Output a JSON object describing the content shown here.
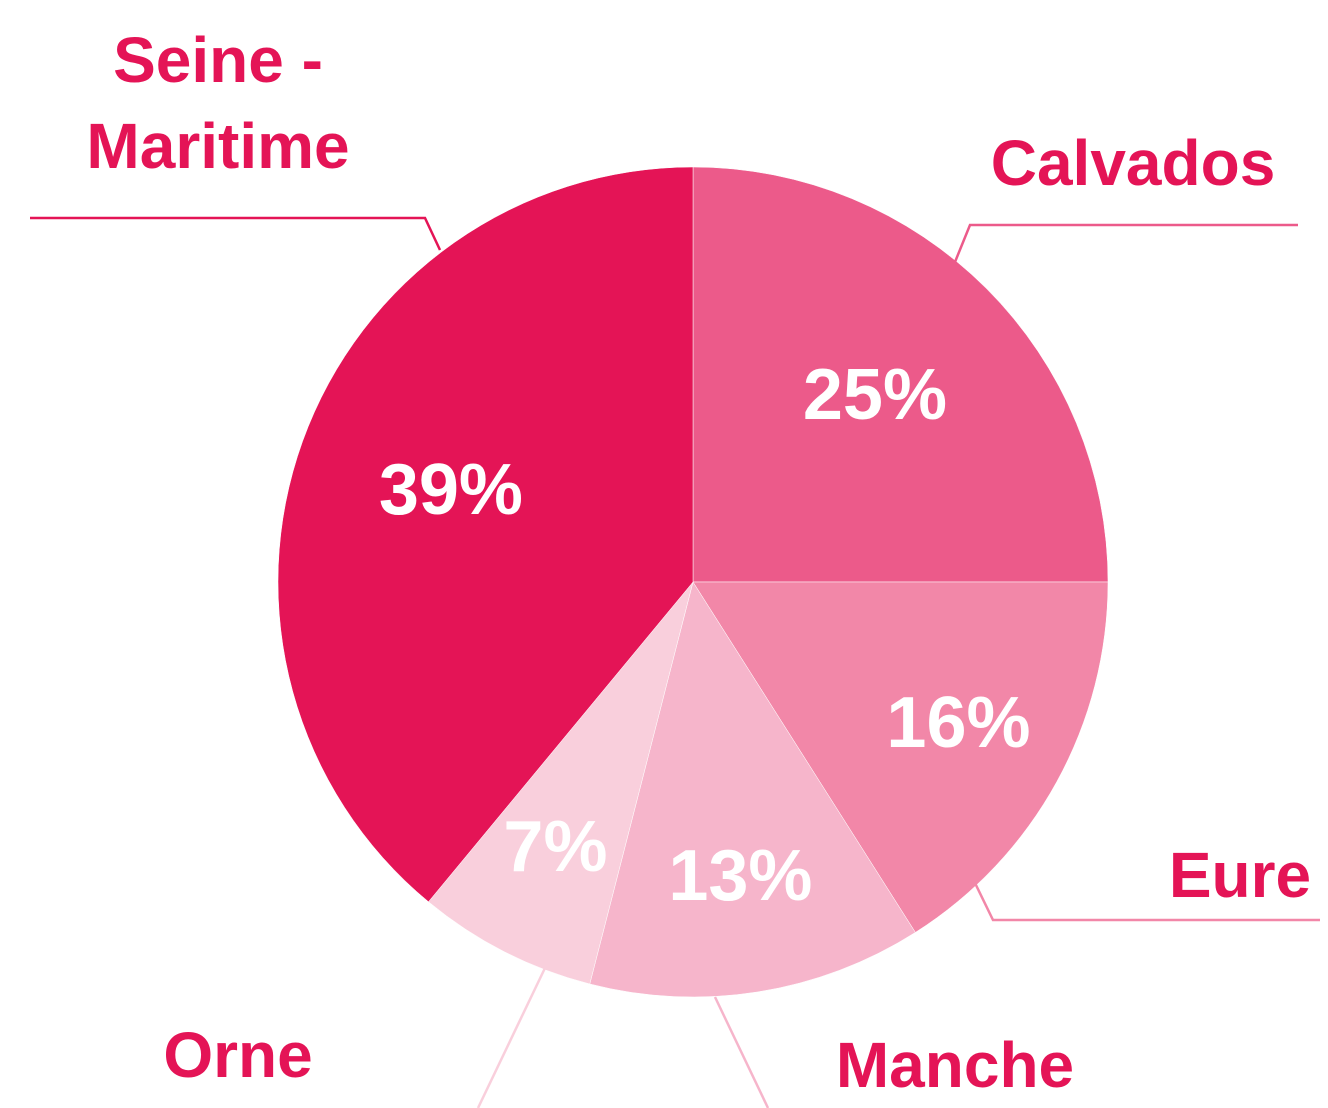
{
  "chart_data": {
    "type": "pie",
    "categories": [
      "Calvados",
      "Eure",
      "Manche",
      "Orne",
      "Seine - Maritime"
    ],
    "values": [
      25,
      16,
      13,
      7,
      39
    ],
    "value_labels": [
      "25%",
      "16%",
      "13%",
      "7%",
      "39%"
    ],
    "colors": [
      "#ec5a8a",
      "#f287a8",
      "#f6b5cb",
      "#f9cfdc",
      "#e41456"
    ]
  }
}
